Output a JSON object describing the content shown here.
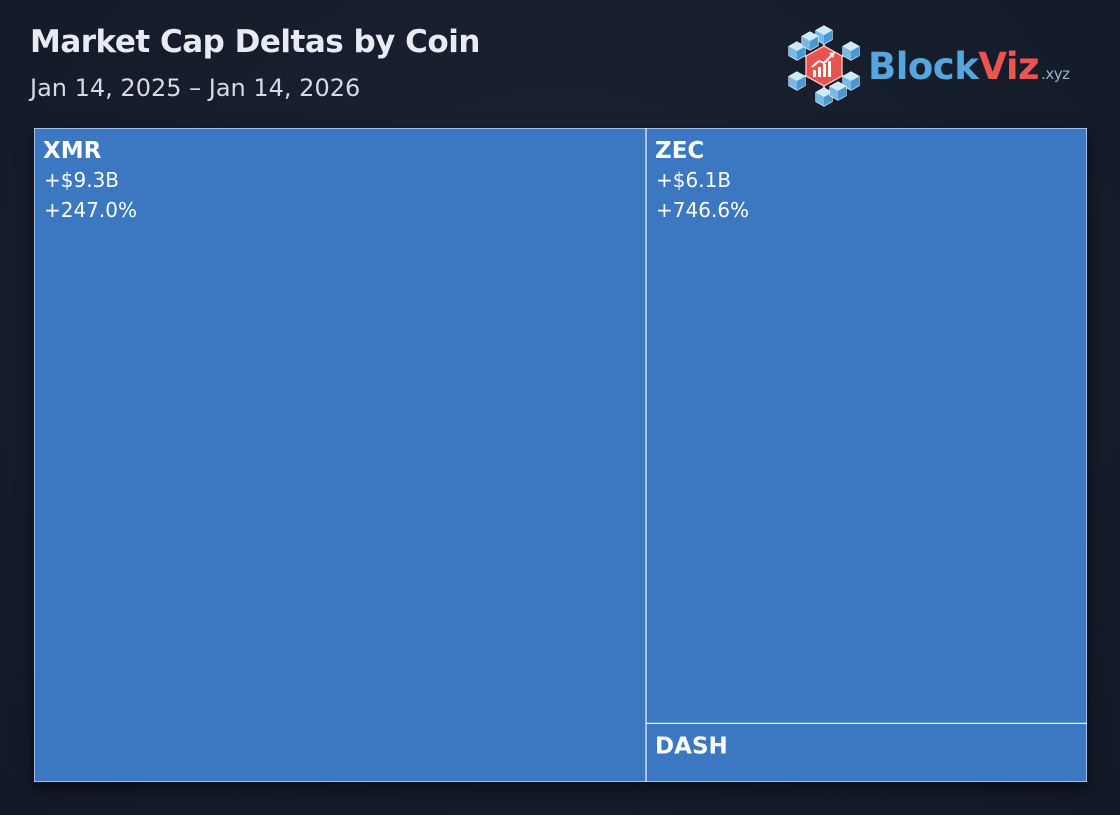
{
  "header": {
    "title": "Market Cap Deltas by Coin",
    "subtitle": "Jan 14, 2025 – Jan 14, 2026"
  },
  "brand": {
    "name_part1": "Block",
    "name_part2": "Viz",
    "tld": ".xyz",
    "colors": {
      "primary": "#56a6de",
      "accent": "#ec5452"
    }
  },
  "chart_data": {
    "type": "treemap",
    "title": "Market Cap Deltas by Coin",
    "subtitle": "Jan 14, 2025 – Jan 14, 2026",
    "tile_color": "#3c78c1",
    "border_color": "#e8eef7",
    "items": [
      {
        "name": "XMR",
        "value_billions": 9.3,
        "delta_label": "+$9.3B",
        "pct_label": "+247.0%"
      },
      {
        "name": "ZEC",
        "value_billions": 6.1,
        "delta_label": "+$6.1B",
        "pct_label": "+746.6%"
      },
      {
        "name": "DASH",
        "value_billions": 0.6,
        "delta_label": "",
        "pct_label": ""
      }
    ]
  }
}
